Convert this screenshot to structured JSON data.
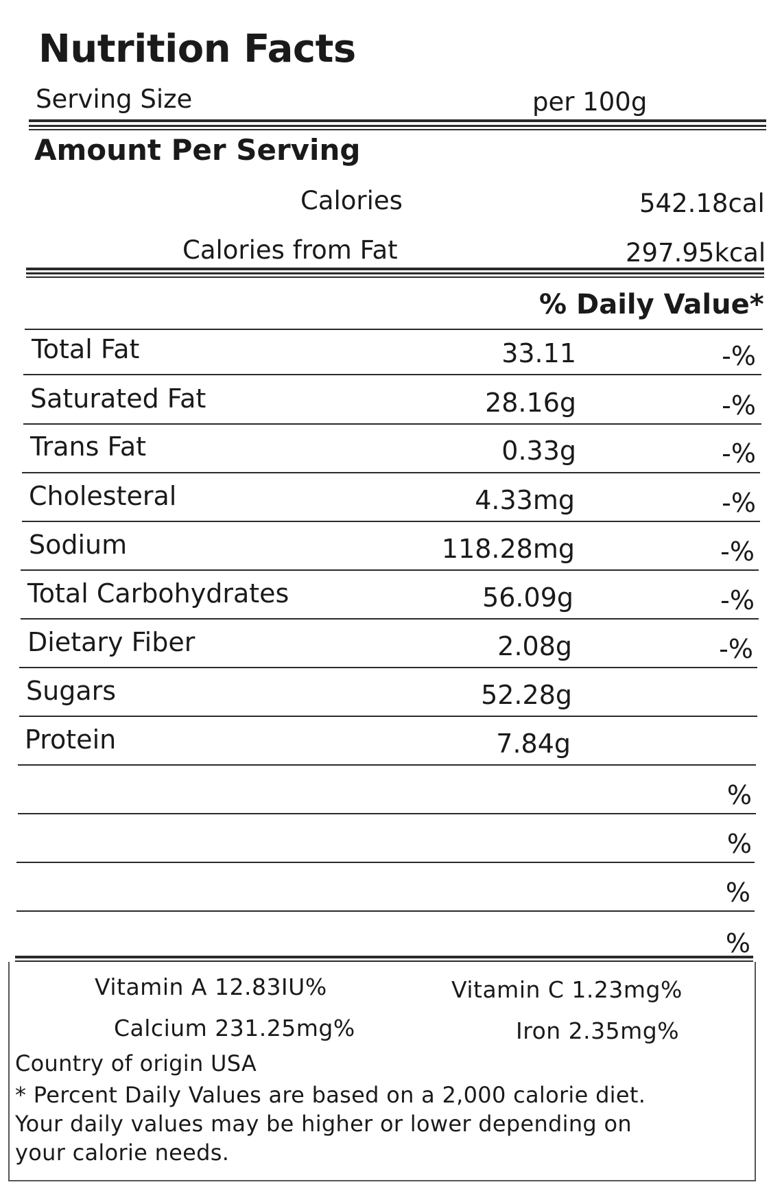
{
  "header": {
    "title": "Nutrition Facts",
    "serving_size_label": "Serving Size",
    "serving_size_value": "per 100g",
    "amount_per_serving": "Amount Per Serving"
  },
  "calories": {
    "label": "Calories",
    "value": "542.18cal",
    "from_fat_label": "Calories from Fat",
    "from_fat_value": "297.95kcal"
  },
  "daily_value_header": "% Daily Value*",
  "nutrients": [
    {
      "name": "Total Fat",
      "amount": "33.11",
      "dv": "-%"
    },
    {
      "name": "Saturated Fat",
      "amount": "28.16g",
      "dv": "-%"
    },
    {
      "name": "Trans Fat",
      "amount": "0.33g",
      "dv": "-%"
    },
    {
      "name": "Cholesteral",
      "amount": "4.33mg",
      "dv": "-%"
    },
    {
      "name": "Sodium",
      "amount": "118.28mg",
      "dv": "-%"
    },
    {
      "name": "Total Carbohydrates",
      "amount": "56.09g",
      "dv": "-%"
    },
    {
      "name": "Dietary Fiber",
      "amount": "2.08g",
      "dv": "-%"
    },
    {
      "name": "Sugars",
      "amount": "52.28g",
      "dv": ""
    },
    {
      "name": "Protein",
      "amount": "7.84g",
      "dv": ""
    }
  ],
  "blank_rows": [
    {
      "dv": "%"
    },
    {
      "dv": "%"
    },
    {
      "dv": "%"
    },
    {
      "dv": "%"
    }
  ],
  "vitamins": {
    "vitamin_a": "Vitamin A 12.83IU%",
    "vitamin_c": "Vitamin C 1.23mg%",
    "calcium": "Calcium 231.25mg%",
    "iron": "Iron 2.35mg%"
  },
  "footer": {
    "origin": "Country of origin USA",
    "note_line1": "* Percent Daily Values are based on a 2,000 calorie diet.",
    "note_line2": "Your daily values may be higher or lower depending on",
    "note_line3": "your calorie needs."
  }
}
